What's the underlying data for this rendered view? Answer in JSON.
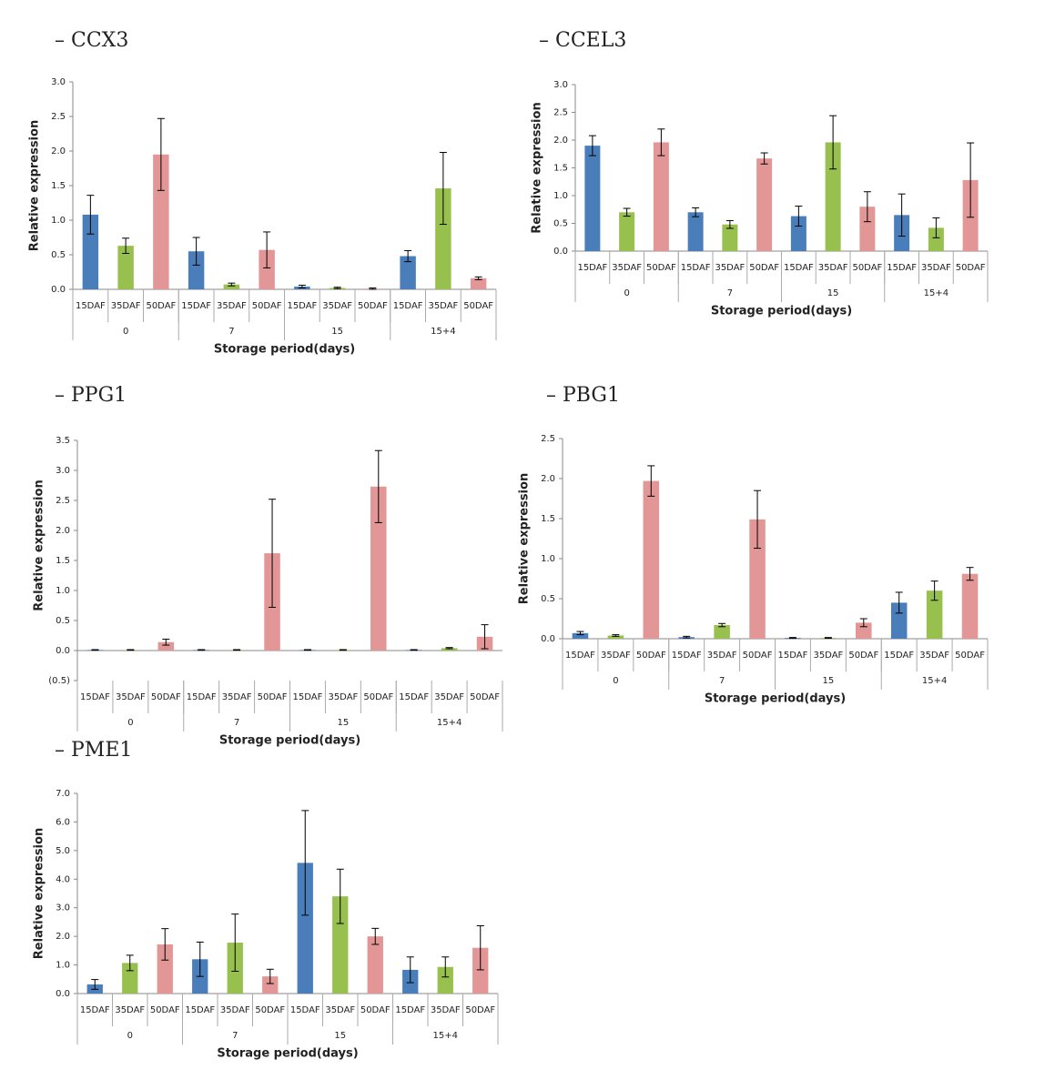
{
  "chart_data": [
    {
      "type": "bar",
      "title": "– CCX3",
      "ylabel": "Relative expression",
      "xlabel": "Storage period(days)",
      "categories": [
        "15DAF",
        "35DAF",
        "50DAF",
        "15DAF",
        "35DAF",
        "50DAF",
        "15DAF",
        "35DAF",
        "50DAF",
        "15DAF",
        "35DAF",
        "50DAF"
      ],
      "groups": [
        "0",
        "7",
        "15",
        "15+4"
      ],
      "values": [
        1.08,
        0.63,
        1.95,
        0.55,
        0.07,
        0.57,
        0.04,
        0.02,
        0.01,
        0.48,
        1.46,
        0.16
      ],
      "errors": [
        0.28,
        0.11,
        0.52,
        0.2,
        0.02,
        0.26,
        0.02,
        0.01,
        0.01,
        0.08,
        0.52,
        0.02
      ],
      "colors": [
        "#4a7ebb",
        "#98c04e",
        "#e29695"
      ],
      "ylim": [
        0,
        3
      ],
      "yticks": [
        {
          "value": 0,
          "label": "0.0"
        },
        0.5,
        {
          "value": 1,
          "label": "1.0"
        },
        1.5,
        {
          "value": 2,
          "label": "2.0"
        },
        2.5,
        {
          "value": 3,
          "label": "3.0"
        }
      ]
    },
    {
      "type": "bar",
      "title": "– CCEL3",
      "ylabel": "Relative expression",
      "xlabel": "Storage period(days)",
      "categories": [
        "15DAF",
        "35DAF",
        "50DAF",
        "15DAF",
        "35DAF",
        "50DAF",
        "15DAF",
        "35DAF",
        "50DAF",
        "15DAF",
        "35DAF",
        "50DAF"
      ],
      "groups": [
        "0",
        "7",
        "15",
        "15+4"
      ],
      "values": [
        1.9,
        0.7,
        1.96,
        0.7,
        0.48,
        1.67,
        0.63,
        1.96,
        0.8,
        0.65,
        0.42,
        1.28
      ],
      "errors": [
        0.18,
        0.07,
        0.24,
        0.08,
        0.07,
        0.1,
        0.18,
        0.48,
        0.27,
        0.38,
        0.18,
        0.67
      ],
      "colors": [
        "#4a7ebb",
        "#98c04e",
        "#e29695"
      ],
      "ylim": [
        0,
        3
      ],
      "yticks": [
        {
          "value": 0,
          "label": "0.0"
        },
        0.5,
        {
          "value": 1,
          "label": "1.0"
        },
        1.5,
        {
          "value": 2,
          "label": "2.0"
        },
        2.5,
        {
          "value": 3,
          "label": "3.0"
        }
      ]
    },
    {
      "type": "bar",
      "title": "– PPG1",
      "ylabel": "Relative expression",
      "xlabel": "Storage period(days)",
      "categories": [
        "15DAF",
        "35DAF",
        "50DAF",
        "15DAF",
        "35DAF",
        "50DAF",
        "15DAF",
        "35DAF",
        "50DAF",
        "15DAF",
        "35DAF",
        "50DAF"
      ],
      "groups": [
        "0",
        "7",
        "15",
        "15+4"
      ],
      "values": [
        0.01,
        0.01,
        0.14,
        0.01,
        0.01,
        1.62,
        0.01,
        0.01,
        2.73,
        0.01,
        0.04,
        0.23
      ],
      "errors": [
        0.005,
        0.005,
        0.05,
        0.005,
        0.005,
        0.9,
        0.005,
        0.005,
        0.6,
        0.005,
        0.01,
        0.2
      ],
      "colors": [
        "#4a7ebb",
        "#98c04e",
        "#e29695"
      ],
      "ylim": [
        -0.5,
        3.5
      ],
      "yticks": [
        {
          "value": -0.5,
          "label": "(0.5)"
        },
        {
          "value": 0,
          "label": "0.0"
        },
        0.5,
        {
          "value": 1,
          "label": "1.0"
        },
        1.5,
        {
          "value": 2,
          "label": "2.0"
        },
        2.5,
        {
          "value": 3,
          "label": "3.0"
        },
        3.5
      ]
    },
    {
      "type": "bar",
      "title": "– PBG1",
      "ylabel": "Relative expression",
      "xlabel": "Storage period(days)",
      "categories": [
        "15DAF",
        "35DAF",
        "50DAF",
        "15DAF",
        "35DAF",
        "50DAF",
        "15DAF",
        "35DAF",
        "50DAF",
        "15DAF",
        "35DAF",
        "50DAF"
      ],
      "groups": [
        "0",
        "7",
        "15",
        "15+4"
      ],
      "values": [
        0.07,
        0.04,
        1.97,
        0.02,
        0.17,
        1.49,
        0.01,
        0.01,
        0.2,
        0.45,
        0.6,
        0.81
      ],
      "errors": [
        0.02,
        0.01,
        0.19,
        0.01,
        0.02,
        0.36,
        0.005,
        0.005,
        0.05,
        0.13,
        0.12,
        0.08
      ],
      "colors": [
        "#4a7ebb",
        "#98c04e",
        "#e29695"
      ],
      "ylim": [
        0,
        2.5
      ],
      "yticks": [
        {
          "value": 0,
          "label": "0.0"
        },
        0.5,
        {
          "value": 1,
          "label": "1.0"
        },
        1.5,
        {
          "value": 2,
          "label": "2.0"
        },
        2.5
      ]
    },
    {
      "type": "bar",
      "title": "– PME1",
      "ylabel": "Relative expression",
      "xlabel": "Storage period(days)",
      "categories": [
        "15DAF",
        "35DAF",
        "50DAF",
        "15DAF",
        "35DAF",
        "50DAF",
        "15DAF",
        "35DAF",
        "50DAF",
        "15DAF",
        "35DAF",
        "50DAF"
      ],
      "groups": [
        "0",
        "7",
        "15",
        "15+4"
      ],
      "values": [
        0.32,
        1.07,
        1.72,
        1.2,
        1.78,
        0.6,
        4.57,
        3.4,
        2.0,
        0.83,
        0.93,
        1.6
      ],
      "errors": [
        0.17,
        0.27,
        0.55,
        0.6,
        1.0,
        0.25,
        1.83,
        0.95,
        0.28,
        0.45,
        0.35,
        0.77
      ],
      "colors": [
        "#4a7ebb",
        "#98c04e",
        "#e29695"
      ],
      "ylim": [
        0,
        7
      ],
      "yticks": [
        {
          "value": 0,
          "label": "0.0"
        },
        {
          "value": 1,
          "label": "1.0"
        },
        {
          "value": 2,
          "label": "2.0"
        },
        {
          "value": 3,
          "label": "3.0"
        },
        {
          "value": 4,
          "label": "4.0"
        },
        {
          "value": 5,
          "label": "5.0"
        },
        {
          "value": 6,
          "label": "6.0"
        },
        {
          "value": 7,
          "label": "7.0"
        }
      ]
    }
  ]
}
